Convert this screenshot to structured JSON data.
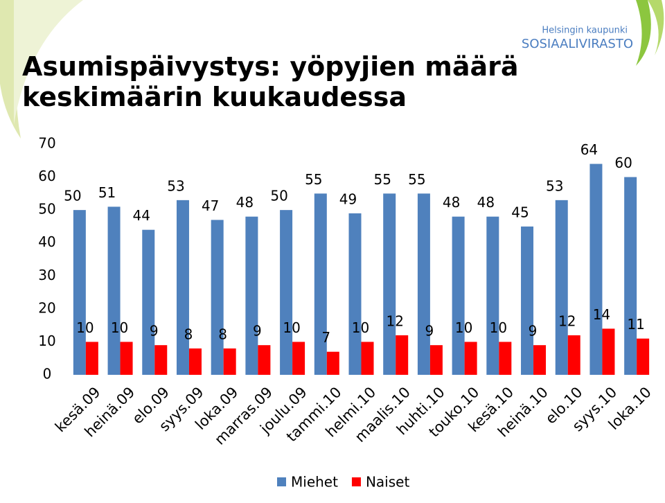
{
  "logo": {
    "line1": "Helsingin kaupunki",
    "line2": "SOSIAALIVIRASTO"
  },
  "chart_data": {
    "type": "bar",
    "title": "Asumispäivystys: yöpyjien määrä keskimäärin kuukaudessa",
    "categories": [
      "kesä.09",
      "heinä.09",
      "elo.09",
      "syys.09",
      "loka.09",
      "marras.09",
      "joulu.09",
      "tammi.10",
      "helmi.10",
      "maalis.10",
      "huhti.10",
      "touko.10",
      "kesä.10",
      "heinä.10",
      "elo.10",
      "syys.10",
      "loka.10"
    ],
    "series": [
      {
        "name": "Miehet",
        "color": "#4f81bd",
        "values": [
          50,
          51,
          44,
          53,
          47,
          48,
          50,
          55,
          49,
          55,
          55,
          48,
          48,
          45,
          53,
          64,
          60
        ]
      },
      {
        "name": "Naiset",
        "color": "#ff0000",
        "values": [
          10,
          10,
          9,
          8,
          8,
          9,
          10,
          7,
          10,
          12,
          9,
          10,
          10,
          9,
          12,
          14,
          11
        ]
      }
    ],
    "ylim": [
      0,
      70
    ],
    "yticks": [
      0,
      10,
      20,
      30,
      40,
      50,
      60,
      70
    ],
    "grid": false,
    "legend": "bottom"
  }
}
